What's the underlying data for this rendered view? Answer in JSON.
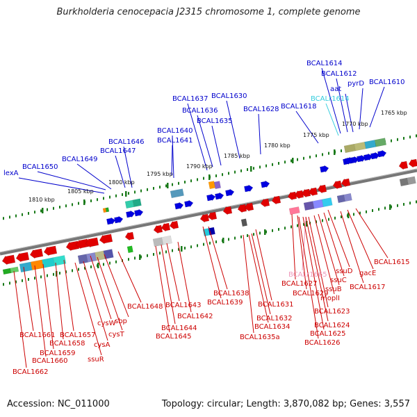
{
  "title": "Burkholderia cenocepacia J2315 chromosome 1, complete genome",
  "footer": {
    "accession": "Accession: NC_011000",
    "summary": "Topology: circular; Length: 3,870,082 bp; Genes: 3,557"
  },
  "colors": {
    "forward_gene": "#0000e0",
    "reverse_gene": "#e00000",
    "backbone": "#777777",
    "tick": "#1a7a1a",
    "label_blue": "#0000cc",
    "label_red": "#cc0000",
    "label_cyan": "#33ccdd",
    "label_pink": "#ee99bb"
  },
  "kbp_ticks": [
    "1765 kbp",
    "1770 kbp",
    "1775 kbp",
    "1780 kbp",
    "1785 kbp",
    "1790 kbp",
    "1795 kbp",
    "1800 kbp",
    "1805 kbp",
    "1810 kbp"
  ],
  "top_labels": [
    "BCAL1614",
    "BCAL1612",
    "aat",
    "BCALr1614",
    "pyrD",
    "BCAL1610",
    "BCAL1637",
    "BCAL1630",
    "BCAL1636",
    "BCAL1628",
    "BCAL1618",
    "BCAL1635",
    "BCAL1640",
    "BCAL1646",
    "BCAL1641",
    "BCAL1647",
    "BCAL1649",
    "BCAL1650",
    "lexA"
  ],
  "bottom_labels": [
    "BCAL1615",
    "gacE",
    "ssuD",
    "BCALr1665",
    "BCAL1617",
    "ssuC",
    "BCAL1627",
    "ssuB",
    "BCAL1629",
    "moplI",
    "BCAL1638",
    "BCAL1631",
    "BCAL1639",
    "BCAL1623",
    "BCAL1632",
    "BCAL1624",
    "BCAL1634",
    "BCAL1625",
    "BCAL1635a",
    "BCAL1626",
    "BCAL1648",
    "BCAL1643",
    "BCAL1642",
    "BCAL1644",
    "BCAL1645",
    "cysW",
    "sbp",
    "cysT",
    "BCAL1657",
    "cysA",
    "BCAL1658",
    "BCAL1659",
    "ssuR",
    "BCAL1661",
    "BCAL1660",
    "BCAL1662"
  ]
}
